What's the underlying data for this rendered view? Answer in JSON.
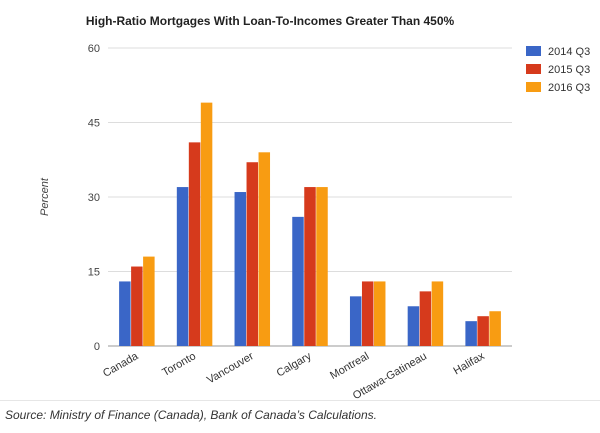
{
  "chart_data": {
    "type": "bar",
    "title": "High-Ratio Mortgages With Loan-To-Incomes Greater Than 450%",
    "xlabel": "",
    "ylabel": "Percent",
    "ylim": [
      0,
      60
    ],
    "yticks": [
      0,
      15,
      30,
      45,
      60
    ],
    "grid": true,
    "legend": "top-right",
    "categories": [
      "Canada",
      "Toronto",
      "Vancouver",
      "Calgary",
      "Montreal",
      "Ottawa-Gatineau",
      "Halifax"
    ],
    "series": [
      {
        "name": "2014 Q3",
        "color": "#3a66c7",
        "values": [
          13,
          32,
          31,
          26,
          10,
          8,
          5
        ]
      },
      {
        "name": "2015 Q3",
        "color": "#d63a1c",
        "values": [
          16,
          41,
          37,
          32,
          13,
          11,
          6
        ]
      },
      {
        "name": "2016 Q3",
        "color": "#f89c12",
        "values": [
          18,
          49,
          39,
          32,
          13,
          13,
          7
        ]
      }
    ]
  },
  "source": "Source: Ministry of Finance (Canada), Bank of Canada’s Calculations."
}
